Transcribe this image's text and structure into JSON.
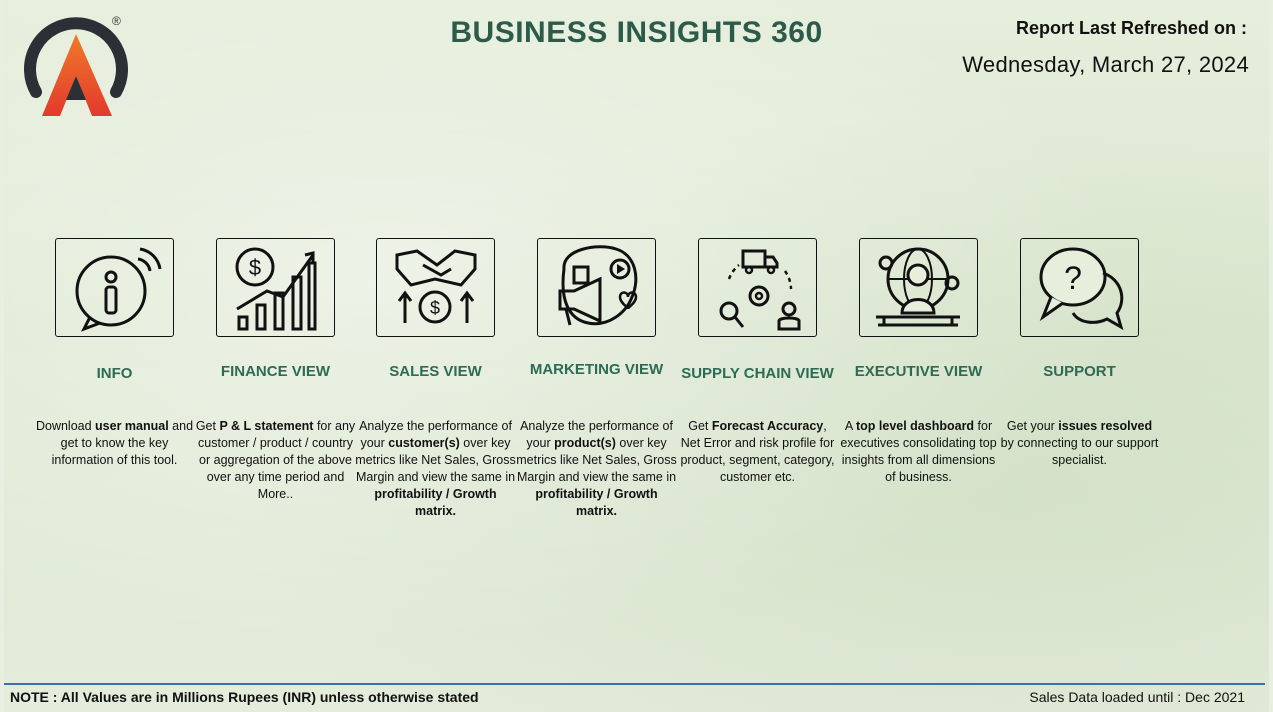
{
  "header": {
    "title": "BUSINESS INSIGHTS 360",
    "refresh_label": "Report Last Refreshed on :",
    "refresh_date": "Wednesday, March 27, 2024",
    "registered_mark": "®"
  },
  "colors": {
    "title": "#2d5b4a",
    "card_title": "#2d6b55",
    "accent_line": "#3a6fb0"
  },
  "cards": [
    {
      "title": "INFO",
      "icon": "info-icon",
      "desc": [
        [
          "Download ",
          ""
        ],
        [
          "user manual",
          "b"
        ],
        [
          " and get to know the key information of this tool.",
          ""
        ]
      ]
    },
    {
      "title": "FINANCE VIEW",
      "icon": "finance-growth-icon",
      "desc": [
        [
          "Get  ",
          ""
        ],
        [
          "P & L statement",
          "b"
        ],
        [
          " for any customer / product / country or aggregation of the above over any time period and More..",
          ""
        ]
      ]
    },
    {
      "title": "SALES VIEW",
      "icon": "handshake-icon",
      "desc": [
        [
          "Analyze the performance of your ",
          ""
        ],
        [
          "customer(s)",
          "b"
        ],
        [
          " over key metrics like Net Sales, Gross Margin and view the same in ",
          ""
        ],
        [
          "profitability / Growth matrix.",
          "b"
        ]
      ]
    },
    {
      "title": "MARKETING VIEW",
      "icon": "marketing-megaphone-icon",
      "desc": [
        [
          "Analyze the performance of your ",
          ""
        ],
        [
          "product(s)",
          "b"
        ],
        [
          " over key metrics like Net Sales, Gross Margin and view the same in ",
          ""
        ],
        [
          "profitability / Growth matrix.",
          "b"
        ]
      ]
    },
    {
      "title": "SUPPLY CHAIN VIEW",
      "icon": "supply-chain-icon",
      "desc": [
        [
          "Get ",
          ""
        ],
        [
          "Forecast Accuracy",
          "b"
        ],
        [
          ", Net Error and risk profile for product, segment, category, customer etc.",
          ""
        ]
      ]
    },
    {
      "title": "EXECUTIVE VIEW",
      "icon": "executive-icon",
      "desc": [
        [
          "A ",
          ""
        ],
        [
          "top level dashboard",
          "b"
        ],
        [
          " for executives consolidating top insights from all dimensions of business.",
          ""
        ]
      ]
    },
    {
      "title": "SUPPORT",
      "icon": "support-chat-icon",
      "desc": [
        [
          "Get your ",
          ""
        ],
        [
          "issues resolved",
          "b"
        ],
        [
          " by connecting to our support specialist.",
          ""
        ]
      ]
    }
  ],
  "footer": {
    "note": "NOTE : All Values are in Millions Rupees (INR) unless otherwise stated",
    "sales_loaded": "Sales Data loaded until : Dec 2021"
  }
}
